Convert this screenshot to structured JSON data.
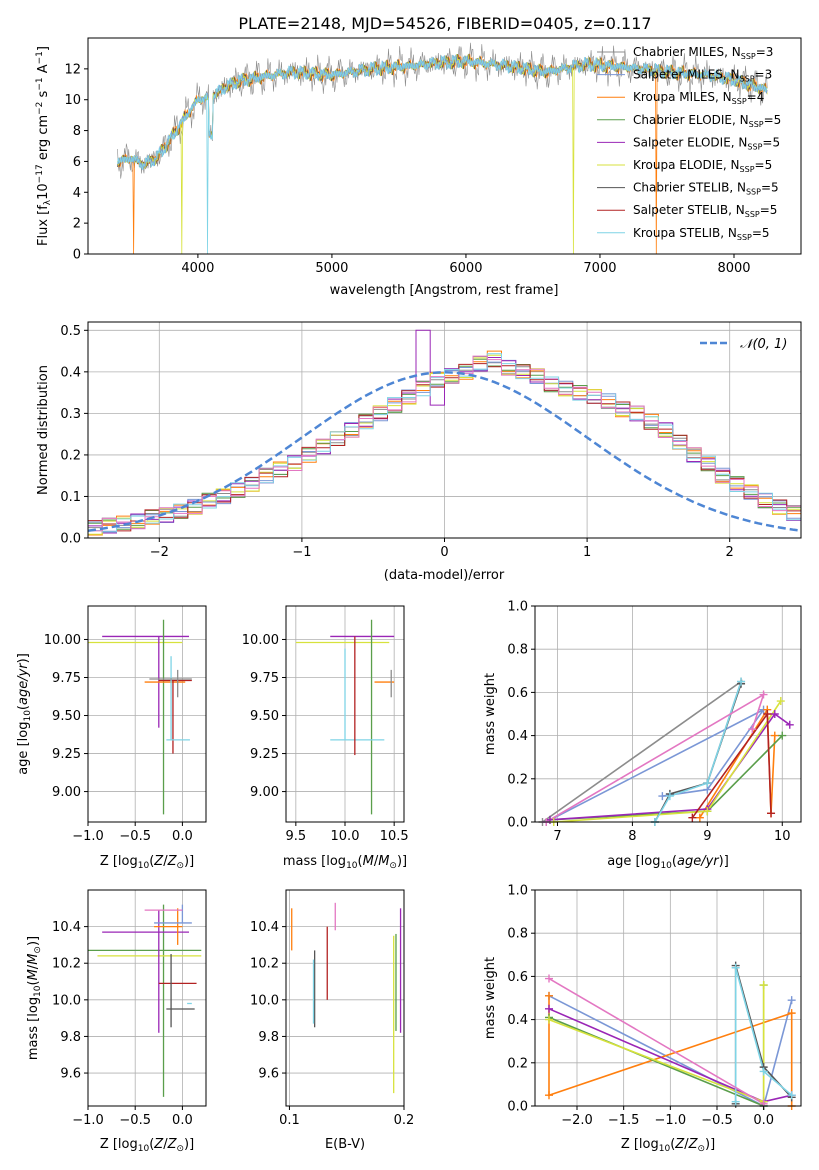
{
  "title": "PLATE=2148, MJD=54526, FIBERID=0405, z=0.117",
  "colors": {
    "Chabrier MILES": "#8c8c8c",
    "Salpeter MILES": "#7b97d6",
    "Kroupa MILES": "#ff7f0e",
    "Chabrier ELODIE": "#5a9e4b",
    "Salpeter ELODIE": "#9a26b6",
    "Kroupa ELODIE": "#d7e23c",
    "Chabrier STELIB": "#555555",
    "Salpeter STELIB": "#b22222",
    "Kroupa STELIB": "#7fd4e6",
    "normal": "#4e86d4"
  },
  "legend": [
    {
      "key": "Chabrier MILES",
      "name": "Chabrier MILES",
      "nssp": "3"
    },
    {
      "key": "Salpeter MILES",
      "name": "Salpeter MILES",
      "nssp": "3"
    },
    {
      "key": "Kroupa MILES",
      "name": "Kroupa MILES",
      "nssp": "4"
    },
    {
      "key": "Chabrier ELODIE",
      "name": "Chabrier ELODIE",
      "nssp": "5"
    },
    {
      "key": "Salpeter ELODIE",
      "name": "Salpeter ELODIE",
      "nssp": "5"
    },
    {
      "key": "Kroupa ELODIE",
      "name": "Kroupa ELODIE",
      "nssp": "5"
    },
    {
      "key": "Chabrier STELIB",
      "name": "Chabrier STELIB",
      "nssp": "5"
    },
    {
      "key": "Salpeter STELIB",
      "name": "Salpeter STELIB",
      "nssp": "5"
    },
    {
      "key": "Kroupa STELIB",
      "name": "Kroupa STELIB",
      "nssp": "5"
    }
  ],
  "chart_data": [
    {
      "id": "spectrum",
      "type": "line",
      "xlabel": "wavelength [Angstrom, rest frame]",
      "ylabel": "Flux [fλ 10⁻¹⁷ erg cm⁻² s⁻¹ A⁻¹]",
      "xlim": [
        3180,
        8500
      ],
      "ylim": [
        0,
        14
      ],
      "xticks": [
        4000,
        5000,
        6000,
        7000,
        8000
      ],
      "yticks": [
        0,
        2,
        4,
        6,
        8,
        10,
        12
      ],
      "grid": false,
      "legend_position": "upper right",
      "x": [
        3400,
        3500,
        3600,
        3700,
        3800,
        3900,
        4000,
        4100,
        4200,
        4300,
        4500,
        4700,
        5000,
        5300,
        5600,
        5800,
        6000,
        6300,
        6600,
        6900,
        7200,
        7500,
        7800,
        8000,
        8250
      ],
      "y": [
        6.0,
        6.2,
        5.8,
        6.3,
        7.5,
        8.8,
        10.0,
        10.2,
        10.8,
        11.2,
        11.5,
        11.8,
        11.6,
        12.0,
        12.2,
        12.4,
        12.5,
        12.2,
        11.8,
        12.3,
        12.1,
        11.8,
        11.6,
        11.3,
        10.6
      ],
      "drops": [
        {
          "series": "Kroupa MILES",
          "x": 3520
        },
        {
          "series": "Kroupa ELODIE",
          "x": 3880
        },
        {
          "series": "Kroupa STELIB",
          "x": 4070
        },
        {
          "series": "Kroupa ELODIE",
          "x": 6800
        },
        {
          "series": "Kroupa MILES",
          "x": 7420
        }
      ]
    },
    {
      "id": "residuals",
      "type": "histogram",
      "xlabel": "(data-model)/error",
      "ylabel": "Normed distribution",
      "xlim": [
        -2.5,
        2.5
      ],
      "ylim": [
        0,
        0.52
      ],
      "xticks": [
        -2,
        -1,
        0,
        1,
        2
      ],
      "yticks": [
        0.0,
        0.1,
        0.2,
        0.3,
        0.4,
        0.5
      ],
      "grid": true,
      "legend": "𝒩(0, 1)",
      "bin_width": 0.1,
      "bin_start": -2.5,
      "values": [
        0.025,
        0.03,
        0.035,
        0.04,
        0.05,
        0.055,
        0.065,
        0.075,
        0.09,
        0.1,
        0.115,
        0.13,
        0.15,
        0.165,
        0.18,
        0.2,
        0.22,
        0.24,
        0.26,
        0.28,
        0.3,
        0.32,
        0.34,
        0.36,
        0.38,
        0.39,
        0.4,
        0.42,
        0.43,
        0.41,
        0.4,
        0.39,
        0.37,
        0.36,
        0.35,
        0.34,
        0.33,
        0.31,
        0.3,
        0.28,
        0.26,
        0.23,
        0.2,
        0.18,
        0.15,
        0.13,
        0.11,
        0.09,
        0.075,
        0.06
      ]
    },
    {
      "id": "age-vs-Z",
      "type": "errorbar",
      "xlabel": "Z [log10(Z/Z☉)]",
      "ylabel": "age [log10(age/yr)]",
      "xlim": [
        -1.0,
        0.25
      ],
      "ylim": [
        8.8,
        10.22
      ],
      "xticks": [
        -1.0,
        -0.5,
        0.0
      ],
      "yticks": [
        9.0,
        9.25,
        9.5,
        9.75,
        10.0
      ],
      "grid": true,
      "points": [
        {
          "series": "Kroupa ELODIE",
          "x": -0.2,
          "y": 9.98,
          "x_err": [
            0.95,
            0.2
          ],
          "y_err": [
            0.0,
            0.0
          ]
        },
        {
          "series": "Salpeter ELODIE",
          "x": -0.25,
          "y": 10.02,
          "x_err": [
            0.6,
            0.32
          ],
          "y_err": [
            0.6,
            0.0
          ]
        },
        {
          "series": "Chabrier ELODIE",
          "x": -0.2,
          "y": 9.35,
          "x_err": [
            0.0,
            0.0
          ],
          "y_err": [
            0.5,
            0.78
          ]
        },
        {
          "series": "Kroupa MILES",
          "x": -0.05,
          "y": 9.72,
          "x_err": [
            0.35,
            0.08
          ],
          "y_err": [
            0.0,
            0.0
          ]
        },
        {
          "series": "Salpeter STELIB",
          "x": -0.1,
          "y": 9.73,
          "x_err": [
            0.15,
            0.2
          ],
          "y_err": [
            0.48,
            0.0
          ]
        },
        {
          "series": "Kroupa STELIB",
          "x": -0.12,
          "y": 9.34,
          "x_err": [
            0.05,
            0.2
          ],
          "y_err": [
            0.0,
            0.55
          ]
        },
        {
          "series": "Chabrier MILES",
          "x": -0.05,
          "y": 9.74,
          "x_err": [
            0.3,
            0.15
          ],
          "y_err": [
            0.12,
            0.06
          ]
        }
      ]
    },
    {
      "id": "age-vs-mass",
      "type": "errorbar",
      "xlabel": "mass [log10(M/M☉)]",
      "ylabel": "",
      "xlim": [
        9.4,
        10.6
      ],
      "ylim": [
        8.8,
        10.22
      ],
      "xticks": [
        9.5,
        10.0,
        10.5
      ],
      "yticks": [
        9.0,
        9.25,
        9.5,
        9.75,
        10.0
      ],
      "grid": true,
      "points": [
        {
          "series": "Kroupa ELODIE",
          "x": 10.25,
          "y": 9.98,
          "x_err": [
            0.75,
            0.2
          ],
          "y_err": [
            0.0,
            0.0
          ]
        },
        {
          "series": "Salpeter ELODIE",
          "x": 10.3,
          "y": 10.02,
          "x_err": [
            0.45,
            0.2
          ],
          "y_err": [
            0.0,
            0.0
          ]
        },
        {
          "series": "Chabrier ELODIE",
          "x": 10.27,
          "y": 9.35,
          "x_err": [
            0.0,
            0.0
          ],
          "y_err": [
            0.5,
            0.78
          ]
        },
        {
          "series": "Kroupa STELIB",
          "x": 10.0,
          "y": 9.34,
          "x_err": [
            0.15,
            0.4
          ],
          "y_err": [
            0.0,
            0.6
          ]
        },
        {
          "series": "Salpeter STELIB",
          "x": 10.1,
          "y": 9.72,
          "x_err": [
            0.0,
            0.0
          ],
          "y_err": [
            0.48,
            0.3
          ]
        },
        {
          "series": "Kroupa MILES",
          "x": 10.4,
          "y": 9.72,
          "x_err": [
            0.1,
            0.1
          ],
          "y_err": [
            0.0,
            0.0
          ]
        },
        {
          "series": "Chabrier MILES",
          "x": 10.47,
          "y": 9.74,
          "x_err": [
            0.0,
            0.0
          ],
          "y_err": [
            0.12,
            0.06
          ]
        }
      ]
    },
    {
      "id": "weight-vs-age",
      "type": "line",
      "xlabel": "age [log10(age/yr)]",
      "ylabel": "mass weight",
      "xlim": [
        6.7,
        10.25
      ],
      "ylim": [
        0,
        1.0
      ],
      "xticks": [
        7,
        8,
        9,
        10
      ],
      "yticks": [
        0.0,
        0.2,
        0.4,
        0.6,
        0.8,
        1.0
      ],
      "grid": true,
      "series": [
        {
          "name": "Chabrier MILES",
          "x": [
            6.8,
            9.45,
            9.0
          ],
          "y": [
            0.0,
            0.65,
            0.18
          ]
        },
        {
          "name": "Salpeter MILES",
          "x": [
            6.85,
            9.75,
            9.0,
            8.4
          ],
          "y": [
            0.0,
            0.52,
            0.15,
            0.12
          ]
        },
        {
          "name": "Kroupa MILES",
          "x": [
            8.9,
            9.8,
            9.85,
            9.9
          ],
          "y": [
            0.02,
            0.52,
            0.04,
            0.4
          ]
        },
        {
          "name": "Chabrier ELODIE",
          "x": [
            6.9,
            9.0,
            10.0
          ],
          "y": [
            0.01,
            0.05,
            0.4
          ]
        },
        {
          "name": "Salpeter ELODIE",
          "x": [
            6.9,
            9.0,
            9.9,
            10.1
          ],
          "y": [
            0.01,
            0.06,
            0.5,
            0.45
          ]
        },
        {
          "name": "Kroupa ELODIE",
          "x": [
            6.95,
            9.0,
            9.98
          ],
          "y": [
            0.0,
            0.05,
            0.56
          ]
        },
        {
          "name": "Chabrier STELIB",
          "x": [
            8.3,
            8.5,
            9.0,
            9.45
          ],
          "y": [
            0.0,
            0.13,
            0.18,
            0.64
          ]
        },
        {
          "name": "Salpeter STELIB",
          "x": [
            8.8,
            9.8,
            9.85
          ],
          "y": [
            0.02,
            0.5,
            0.04
          ]
        },
        {
          "name": "Kroupa STELIB",
          "x": [
            8.3,
            8.5,
            9.0,
            9.45
          ],
          "y": [
            0.0,
            0.12,
            0.18,
            0.65
          ]
        },
        {
          "name": "Pink",
          "x": [
            6.85,
            9.75,
            9.6
          ],
          "y": [
            0.0,
            0.59,
            0.43
          ]
        }
      ]
    },
    {
      "id": "mass-vs-Z",
      "type": "errorbar",
      "xlabel": "Z [log10(Z/Z☉)]",
      "ylabel": "mass [log10(M/M☉)]",
      "xlim": [
        -1.0,
        0.25
      ],
      "ylim": [
        9.42,
        10.6
      ],
      "xticks": [
        -1.0,
        -0.5,
        0.0
      ],
      "yticks": [
        9.6,
        9.8,
        10.0,
        10.2,
        10.4
      ],
      "grid": true,
      "points": [
        {
          "series": "Chabrier ELODIE",
          "x": -0.2,
          "y": 10.27,
          "x_err": [
            0.95,
            0.4
          ],
          "y_err": [
            0.8,
            0.25
          ]
        },
        {
          "series": "Kroupa ELODIE",
          "x": -0.2,
          "y": 10.24,
          "x_err": [
            0.7,
            0.4
          ],
          "y_err": [
            0.0,
            0.0
          ]
        },
        {
          "series": "Salpeter ELODIE",
          "x": -0.25,
          "y": 10.37,
          "x_err": [
            0.6,
            0.32
          ],
          "y_err": [
            0.55,
            0.12
          ]
        },
        {
          "series": "Kroupa MILES",
          "x": -0.05,
          "y": 10.4,
          "x_err": [
            0.25,
            0.05
          ],
          "y_err": [
            0.1,
            0.1
          ]
        },
        {
          "series": "Salpeter STELIB",
          "x": -0.1,
          "y": 10.09,
          "x_err": [
            0.15,
            0.25
          ],
          "y_err": [
            0.0,
            0.0
          ]
        },
        {
          "series": "Chabrier STELIB",
          "x": -0.12,
          "y": 9.95,
          "x_err": [
            0.05,
            0.25
          ],
          "y_err": [
            0.1,
            0.3
          ]
        },
        {
          "series": "Kroupa STELIB",
          "x": 0.05,
          "y": 9.98,
          "x_err": [
            0.0,
            0.05
          ],
          "y_err": [
            0.0,
            0.0
          ]
        },
        {
          "series": "Salpeter MILES",
          "x": 0.0,
          "y": 10.42,
          "x_err": [
            0.3,
            0.1
          ],
          "y_err": [
            0.0,
            0.1
          ]
        },
        {
          "series": "Pink",
          "x": -0.1,
          "y": 10.49,
          "x_err": [
            0.3,
            0.1
          ],
          "y_err": [
            0.0,
            0.0
          ]
        }
      ]
    },
    {
      "id": "mass-vs-EBV",
      "type": "errorbar",
      "xlabel": "E(B-V)",
      "ylabel": "",
      "xlim": [
        0.097,
        0.2
      ],
      "ylim": [
        9.42,
        10.6
      ],
      "xticks": [
        0.1,
        0.2
      ],
      "yticks": [
        9.6,
        9.8,
        10.0,
        10.2,
        10.4
      ],
      "grid": true,
      "points": [
        {
          "series": "Kroupa MILES",
          "x": 0.102,
          "y": 10.42,
          "x_err": [
            0.0,
            0.0
          ],
          "y_err": [
            0.15,
            0.08
          ]
        },
        {
          "series": "Chabrier STELIB",
          "x": 0.122,
          "y": 10.05,
          "x_err": [
            0.0,
            0.0
          ],
          "y_err": [
            0.2,
            0.22
          ]
        },
        {
          "series": "Kroupa STELIB",
          "x": 0.121,
          "y": 10.02,
          "x_err": [
            0.0,
            0.0
          ],
          "y_err": [
            0.15,
            0.2
          ]
        },
        {
          "series": "Salpeter STELIB",
          "x": 0.133,
          "y": 10.15,
          "x_err": [
            0.0,
            0.0
          ],
          "y_err": [
            0.15,
            0.25
          ]
        },
        {
          "series": "Pink",
          "x": 0.14,
          "y": 10.45,
          "x_err": [
            0.0,
            0.0
          ],
          "y_err": [
            0.07,
            0.08
          ]
        },
        {
          "series": "Kroupa ELODIE",
          "x": 0.191,
          "y": 9.92,
          "x_err": [
            0.0,
            0.0
          ],
          "y_err": [
            0.43,
            0.43
          ]
        },
        {
          "series": "Chabrier ELODIE",
          "x": 0.193,
          "y": 10.06,
          "x_err": [
            0.0,
            0.0
          ],
          "y_err": [
            0.23,
            0.3
          ]
        },
        {
          "series": "Salpeter ELODIE",
          "x": 0.197,
          "y": 10.17,
          "x_err": [
            0.0,
            0.0
          ],
          "y_err": [
            0.35,
            0.33
          ]
        }
      ]
    },
    {
      "id": "weight-vs-Z",
      "type": "line",
      "xlabel": "Z [log10(Z/Z☉)]",
      "ylabel": "mass weight",
      "xlim": [
        -2.45,
        0.4
      ],
      "ylim": [
        0,
        1.0
      ],
      "xticks": [
        -2.0,
        -1.5,
        -1.0,
        -0.5,
        0.0
      ],
      "yticks": [
        0.0,
        0.2,
        0.4,
        0.6,
        0.8,
        1.0
      ],
      "grid": true,
      "series": [
        {
          "name": "Salpeter MILES",
          "x": [
            -2.3,
            0.0,
            0.3
          ],
          "y": [
            0.51,
            0.0,
            0.49
          ]
        },
        {
          "name": "Kroupa MILES",
          "x": [
            -2.3,
            -2.3,
            0.3,
            0.3
          ],
          "y": [
            0.51,
            0.05,
            0.43,
            0.0
          ]
        },
        {
          "name": "Chabrier ELODIE",
          "x": [
            -2.3,
            0.0,
            0.0
          ],
          "y": [
            0.41,
            0.0,
            0.56
          ]
        },
        {
          "name": "Salpeter ELODIE",
          "x": [
            -2.3,
            0.0,
            0.3
          ],
          "y": [
            0.45,
            0.02,
            0.05
          ]
        },
        {
          "name": "Kroupa ELODIE",
          "x": [
            -2.3,
            0.0,
            0.0
          ],
          "y": [
            0.4,
            0.02,
            0.56
          ]
        },
        {
          "name": "Chabrier STELIB",
          "x": [
            -0.3,
            -0.3,
            0.0,
            0.3
          ],
          "y": [
            0.01,
            0.65,
            0.18,
            0.04
          ]
        },
        {
          "name": "Kroupa STELIB",
          "x": [
            -0.3,
            -0.3,
            0.0,
            0.3
          ],
          "y": [
            0.02,
            0.64,
            0.16,
            0.05
          ]
        },
        {
          "name": "Pink",
          "x": [
            -2.3,
            0.0
          ],
          "y": [
            0.59,
            0.01
          ]
        }
      ]
    }
  ]
}
